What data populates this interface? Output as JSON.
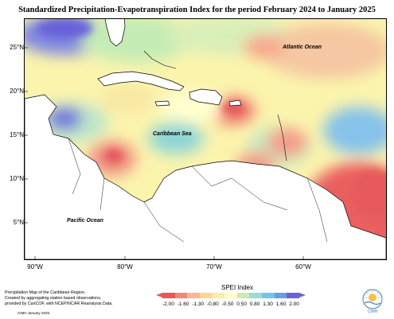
{
  "title": "Standardized Precipitation-Evapotranspiration Index for the period February 2024 to January 2025",
  "latitude_labels": [
    "25°N",
    "20°N",
    "15°N",
    "10°N",
    "5°N"
  ],
  "longitude_labels": [
    "90°W",
    "80°W",
    "70°W",
    "60°W"
  ],
  "sea_labels": {
    "atlantic": "Atlantic Ocean",
    "caribbean": "Caribbean Sea",
    "pacific": "Pacific Ocean"
  },
  "legend": {
    "title": "SPEI Index",
    "ticks": [
      "-2.00",
      "-1.60",
      "-1.30",
      "-0.80",
      "-0.50",
      "0.50",
      "0.80",
      "1.30",
      "1.60",
      "2.00"
    ],
    "colors": [
      "#e8575a",
      "#f4867a",
      "#f9b59c",
      "#fbd89a",
      "#f8efa0",
      "#ffffc8",
      "#cdeab6",
      "#9fdcd0",
      "#73c6e8",
      "#6f9ae6",
      "#6a62d9"
    ]
  },
  "credit": {
    "line1": "Precipitation Map of the Caribbean Region.",
    "line2": "Created by aggregating station based observations,",
    "line3": "provided by CariCOF, with NCEP/NCAR Reanalysis Data.",
    "date": "CIMH January 2025"
  },
  "logo": {
    "text": "CIMH"
  }
}
